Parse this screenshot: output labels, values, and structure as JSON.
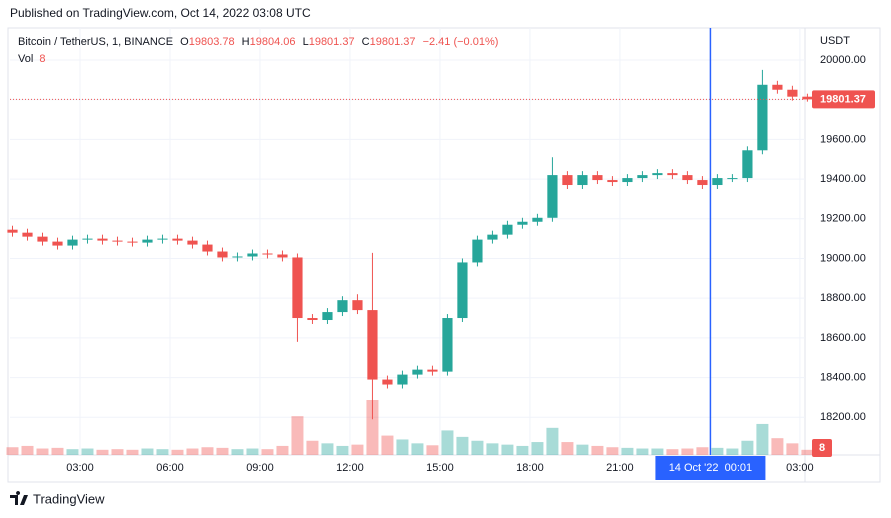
{
  "header": {
    "published": "Published on TradingView.com, Oct 14, 2022 03:08 UTC"
  },
  "footer": {
    "brand": "TradingView"
  },
  "chart_data": {
    "type": "candlestick",
    "symbol": "Bitcoin / TetherUS, 1, BINANCE",
    "open_label": "O",
    "open": 19803.78,
    "high_label": "H",
    "high": 19804.06,
    "low_label": "L",
    "low": 19801.37,
    "close_label": "C",
    "close": 19801.37,
    "change": "−2.41 (−0.01%)",
    "volume_label": "Vol",
    "currency": "USDT",
    "last_price": 19801.37,
    "up_color": "#26a69a",
    "down_color": "#ef5350",
    "x": [
      0.5,
      1,
      1.5,
      2,
      2.5,
      3,
      3.5,
      4,
      4.5,
      5,
      5.5,
      6,
      6.5,
      7,
      7.5,
      8,
      8.5,
      9,
      9.5,
      10,
      10.5,
      11,
      11.5,
      12,
      12.5,
      13,
      13.5,
      14,
      14.5,
      15,
      15.5,
      16,
      16.5,
      17,
      17.5,
      18,
      18.5,
      19,
      19.5,
      20,
      20.5,
      21,
      21.5,
      22,
      22.5,
      23,
      23.5,
      24,
      24.5,
      25,
      25.5,
      26,
      26.5,
      27
    ],
    "o": [
      19145,
      19130,
      19110,
      19085,
      19065,
      19095,
      19100,
      19090,
      19085,
      19080,
      19095,
      19100,
      19090,
      19070,
      19035,
      19005,
      19010,
      19025,
      19020,
      19005,
      18700,
      18690,
      18730,
      18790,
      18740,
      18390,
      18365,
      18415,
      18440,
      18430,
      18700,
      18980,
      19095,
      19120,
      19170,
      19185,
      19205,
      19420,
      19370,
      19420,
      19395,
      19385,
      19405,
      19420,
      19430,
      19420,
      19395,
      19370,
      19405,
      19405,
      19545,
      19875,
      19850,
      19815
    ],
    "h": [
      19165,
      19150,
      19130,
      19105,
      19115,
      19120,
      19120,
      19110,
      19105,
      19115,
      19120,
      19120,
      19110,
      19090,
      19055,
      19030,
      19045,
      19045,
      19040,
      19025,
      18720,
      18750,
      18810,
      18820,
      19028,
      18410,
      18435,
      18460,
      18460,
      18720,
      19000,
      19115,
      19140,
      19190,
      19205,
      19225,
      19510,
      19440,
      19440,
      19440,
      19415,
      19425,
      19440,
      19450,
      19450,
      19440,
      19415,
      19425,
      19425,
      19565,
      19950,
      19895,
      19870,
      19830
    ],
    "l": [
      19110,
      19090,
      19065,
      19045,
      19045,
      19075,
      19070,
      19065,
      19060,
      19060,
      19075,
      19070,
      19050,
      19015,
      18985,
      18985,
      18990,
      19000,
      18985,
      18580,
      18670,
      18670,
      18710,
      18720,
      18190,
      18345,
      18345,
      18395,
      18410,
      18410,
      18680,
      18960,
      19075,
      19100,
      19150,
      19165,
      19185,
      19350,
      19350,
      19375,
      19365,
      19365,
      19385,
      19400,
      19400,
      19375,
      19350,
      19350,
      19385,
      19385,
      19525,
      19830,
      19795,
      19790
    ],
    "c": [
      19130,
      19110,
      19085,
      19065,
      19095,
      19100,
      19090,
      19085,
      19080,
      19095,
      19100,
      19090,
      19070,
      19035,
      19005,
      19010,
      19025,
      19020,
      19005,
      18700,
      18690,
      18730,
      18790,
      18740,
      18390,
      18365,
      18415,
      18440,
      18430,
      18700,
      18980,
      19095,
      19120,
      19170,
      19185,
      19205,
      19420,
      19370,
      19420,
      19395,
      19385,
      19405,
      19420,
      19430,
      19420,
      19395,
      19370,
      19405,
      19405,
      19545,
      19875,
      19850,
      19815,
      19801.37
    ],
    "volume": [
      12,
      14,
      10,
      11,
      9,
      10,
      8,
      9,
      8,
      10,
      9,
      8,
      10,
      12,
      11,
      9,
      10,
      9,
      14,
      60,
      22,
      18,
      14,
      16,
      85,
      30,
      24,
      18,
      15,
      38,
      28,
      22,
      18,
      16,
      14,
      20,
      42,
      20,
      16,
      14,
      12,
      11,
      10,
      10,
      9,
      10,
      12,
      11,
      10,
      22,
      48,
      26,
      18,
      8
    ],
    "xlim": [
      0.667,
      27.17
    ],
    "xticks": [
      {
        "value": 3,
        "label": "03:00"
      },
      {
        "value": 6,
        "label": "06:00"
      },
      {
        "value": 9,
        "label": "09:00"
      },
      {
        "value": 12,
        "label": "12:00"
      },
      {
        "value": 15,
        "label": "15:00"
      },
      {
        "value": 18,
        "label": "18:00"
      },
      {
        "value": 21,
        "label": "21:00"
      },
      {
        "value": 27,
        "label": "03:00"
      }
    ],
    "ylim": [
      18010,
      20161
    ],
    "yticks": [
      {
        "value": 18200,
        "label": "18200.00"
      },
      {
        "value": 18400,
        "label": "18400.00"
      },
      {
        "value": 18600,
        "label": "18600.00"
      },
      {
        "value": 18800,
        "label": "18800.00"
      },
      {
        "value": 19000,
        "label": "19000.00"
      },
      {
        "value": 19200,
        "label": "19200.00"
      },
      {
        "value": 19400,
        "label": "19400.00"
      },
      {
        "value": 19600,
        "label": "19600.00"
      },
      {
        "value": 19800,
        "label": "19800.00"
      },
      {
        "value": 20000,
        "label": "20000.00"
      }
    ],
    "grid": true,
    "crosshair": {
      "x": 24.017,
      "label": "14 Oct '22  00:01",
      "color": "#2962ff"
    }
  }
}
